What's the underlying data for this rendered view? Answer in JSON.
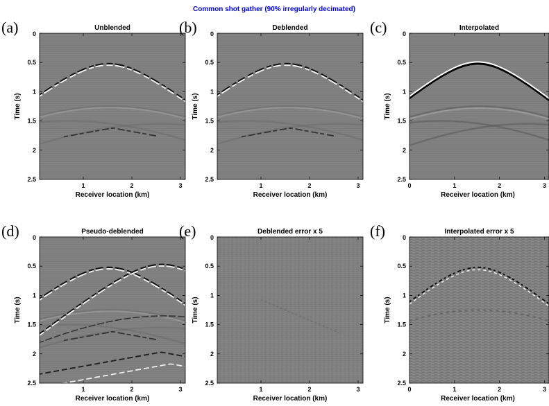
{
  "title": "Common shot gather (90% irregularly decimated)",
  "colors": {
    "title": "#0000ff",
    "background_gray": "#808080"
  },
  "chart_data": [
    {
      "type": "heatmap",
      "label": "(a)",
      "title": "Unblended",
      "xlabel": "Receiver location (km)",
      "ylabel": "Time (s)",
      "xticks": [
        "1",
        "2",
        "3"
      ],
      "yticks": [
        "0",
        "0.5",
        "1",
        "1.5",
        "2",
        "2.5"
      ],
      "xlim": [
        0.1,
        3.1
      ],
      "ylim": [
        0,
        2.5
      ],
      "colormap": "gray"
    },
    {
      "type": "heatmap",
      "label": "(b)",
      "title": "Deblended",
      "xlabel": "Receiver location (km)",
      "ylabel": "Time (s)",
      "xticks": [
        "1",
        "2",
        "3"
      ],
      "yticks": [
        "0",
        "0.5",
        "1",
        "1.5",
        "2",
        "2.5"
      ],
      "xlim": [
        0.1,
        3.1
      ],
      "ylim": [
        0,
        2.5
      ],
      "colormap": "gray"
    },
    {
      "type": "heatmap",
      "label": "(c)",
      "title": "Interpolated",
      "xlabel": "Receiver location (km)",
      "ylabel": "Time (s)",
      "xticks": [
        "0",
        "1",
        "2",
        "3"
      ],
      "yticks": [
        "0",
        "0.5",
        "1",
        "1.5",
        "2",
        "2.5"
      ],
      "xlim": [
        0,
        3.1
      ],
      "ylim": [
        0,
        2.5
      ],
      "colormap": "gray"
    },
    {
      "type": "heatmap",
      "label": "(d)",
      "title": "Pseudo-deblended",
      "xlabel": "Receiver location (km)",
      "ylabel": "Time (s)",
      "xticks": [
        "1",
        "2",
        "3"
      ],
      "yticks": [
        "0",
        "0.5",
        "1",
        "1.5",
        "2",
        "2.5"
      ],
      "xlim": [
        0.1,
        3.1
      ],
      "ylim": [
        0,
        2.5
      ],
      "colormap": "gray"
    },
    {
      "type": "heatmap",
      "label": "(e)",
      "title": "Deblended error x 5",
      "xlabel": "Receiver location (km)",
      "ylabel": "Time (s)",
      "xticks": [
        "1",
        "2",
        "3"
      ],
      "yticks": [
        "0",
        "0.5",
        "1",
        "1.5",
        "2",
        "2.5"
      ],
      "xlim": [
        0.1,
        3.1
      ],
      "ylim": [
        0,
        2.5
      ],
      "colormap": "gray"
    },
    {
      "type": "heatmap",
      "label": "(f)",
      "title": "Interpolated error x 5",
      "xlabel": "Receiver location (km)",
      "ylabel": "Time (s)",
      "xticks": [
        "0",
        "1",
        "2",
        "3"
      ],
      "yticks": [
        "0",
        "0.5",
        "1",
        "1.5",
        "2",
        "2.5"
      ],
      "xlim": [
        0,
        3.1
      ],
      "ylim": [
        0,
        2.5
      ],
      "colormap": "gray"
    }
  ]
}
